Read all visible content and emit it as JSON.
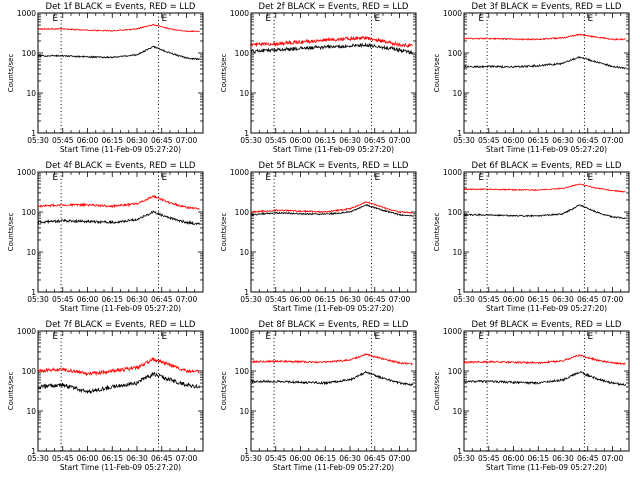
{
  "figure": {
    "xlabel": "Start Time (11-Feb-09 05:27:20)",
    "ylabel": "Counts/sec",
    "ylim": [
      1,
      1000
    ],
    "yscale": "log",
    "yticks": [
      1,
      10,
      100,
      1000
    ],
    "xlim": [
      330,
      430
    ],
    "xtick_values": [
      330,
      345,
      360,
      375,
      390,
      405,
      420
    ],
    "xtick_labels": [
      "05:30",
      "05:45",
      "06:00",
      "06:15",
      "06:30",
      "06:45",
      "07:00"
    ],
    "markers": [
      {
        "x": 344,
        "label": "E",
        "label_side": "left"
      },
      {
        "x": 403,
        "label": "E",
        "label_side": "right"
      }
    ],
    "colors": {
      "events": "#000000",
      "lld": "#ff0000",
      "axes": "#000000"
    }
  },
  "chart_data": [
    {
      "type": "line",
      "title": "Det 1f BLACK = Events, RED = LLD",
      "x_time_min": [
        330,
        345,
        360,
        375,
        390,
        400,
        410,
        420,
        428
      ],
      "series": [
        {
          "color": "#ff0000",
          "values": [
            400,
            400,
            370,
            360,
            400,
            510,
            400,
            350,
            350
          ],
          "noise": 0.03
        },
        {
          "color": "#000000",
          "values": [
            85,
            85,
            80,
            78,
            90,
            145,
            100,
            75,
            70
          ],
          "noise": 0.04
        }
      ]
    },
    {
      "type": "line",
      "title": "Det 2f BLACK = Events, RED = LLD",
      "x_time_min": [
        330,
        345,
        360,
        375,
        390,
        400,
        410,
        420,
        428
      ],
      "series": [
        {
          "color": "#ff0000",
          "values": [
            160,
            170,
            190,
            210,
            230,
            240,
            200,
            160,
            150
          ],
          "noise": 0.1
        },
        {
          "color": "#000000",
          "values": [
            110,
            120,
            130,
            140,
            150,
            160,
            140,
            120,
            100
          ],
          "noise": 0.1
        }
      ]
    },
    {
      "type": "line",
      "title": "Det 3f BLACK = Events, RED = LLD",
      "x_time_min": [
        330,
        345,
        360,
        375,
        390,
        400,
        410,
        420,
        428
      ],
      "series": [
        {
          "color": "#ff0000",
          "values": [
            230,
            230,
            220,
            220,
            240,
            290,
            250,
            220,
            220
          ],
          "noise": 0.04
        },
        {
          "color": "#000000",
          "values": [
            45,
            46,
            45,
            48,
            55,
            80,
            60,
            46,
            42
          ],
          "noise": 0.05
        }
      ]
    },
    {
      "type": "line",
      "title": "Det 4f BLACK = Events, RED = LLD",
      "x_time_min": [
        330,
        345,
        360,
        375,
        390,
        400,
        410,
        420,
        428
      ],
      "series": [
        {
          "color": "#ff0000",
          "values": [
            140,
            150,
            150,
            140,
            160,
            250,
            170,
            130,
            120
          ],
          "noise": 0.06
        },
        {
          "color": "#000000",
          "values": [
            55,
            60,
            58,
            55,
            65,
            100,
            70,
            55,
            50
          ],
          "noise": 0.07
        }
      ]
    },
    {
      "type": "line",
      "title": "Det 5f BLACK = Events, RED = LLD",
      "x_time_min": [
        330,
        345,
        360,
        375,
        390,
        400,
        410,
        420,
        428
      ],
      "series": [
        {
          "color": "#ff0000",
          "values": [
            100,
            110,
            105,
            100,
            120,
            180,
            130,
            100,
            95
          ],
          "noise": 0.04
        },
        {
          "color": "#000000",
          "values": [
            85,
            95,
            90,
            88,
            100,
            150,
            110,
            85,
            80
          ],
          "noise": 0.04
        }
      ]
    },
    {
      "type": "line",
      "title": "Det 6f BLACK = Events, RED = LLD",
      "x_time_min": [
        330,
        345,
        360,
        375,
        390,
        400,
        410,
        420,
        428
      ],
      "series": [
        {
          "color": "#ff0000",
          "values": [
            370,
            370,
            360,
            355,
            390,
            500,
            400,
            340,
            320
          ],
          "noise": 0.03
        },
        {
          "color": "#000000",
          "values": [
            85,
            85,
            80,
            80,
            90,
            150,
            100,
            75,
            70
          ],
          "noise": 0.04
        }
      ]
    },
    {
      "type": "line",
      "title": "Det 7f BLACK = Events, RED = LLD",
      "x_time_min": [
        330,
        345,
        360,
        375,
        390,
        400,
        410,
        420,
        428
      ],
      "series": [
        {
          "color": "#ff0000",
          "values": [
            100,
            110,
            85,
            100,
            120,
            200,
            140,
            100,
            95
          ],
          "noise": 0.1
        },
        {
          "color": "#000000",
          "values": [
            40,
            45,
            30,
            40,
            50,
            85,
            60,
            45,
            40
          ],
          "noise": 0.12
        }
      ]
    },
    {
      "type": "line",
      "title": "Det 8f BLACK = Events, RED = LLD",
      "x_time_min": [
        330,
        345,
        360,
        375,
        390,
        400,
        410,
        420,
        428
      ],
      "series": [
        {
          "color": "#ff0000",
          "values": [
            170,
            175,
            170,
            165,
            190,
            260,
            200,
            160,
            150
          ],
          "noise": 0.05
        },
        {
          "color": "#000000",
          "values": [
            55,
            55,
            52,
            50,
            60,
            95,
            65,
            50,
            45
          ],
          "noise": 0.06
        }
      ]
    },
    {
      "type": "line",
      "title": "Det 9f BLACK = Events, RED = LLD",
      "x_time_min": [
        330,
        345,
        360,
        375,
        390,
        400,
        410,
        420,
        428
      ],
      "series": [
        {
          "color": "#ff0000",
          "values": [
            165,
            170,
            165,
            160,
            180,
            250,
            190,
            160,
            150
          ],
          "noise": 0.05
        },
        {
          "color": "#000000",
          "values": [
            55,
            55,
            52,
            50,
            60,
            95,
            65,
            50,
            45
          ],
          "noise": 0.06
        }
      ]
    }
  ]
}
